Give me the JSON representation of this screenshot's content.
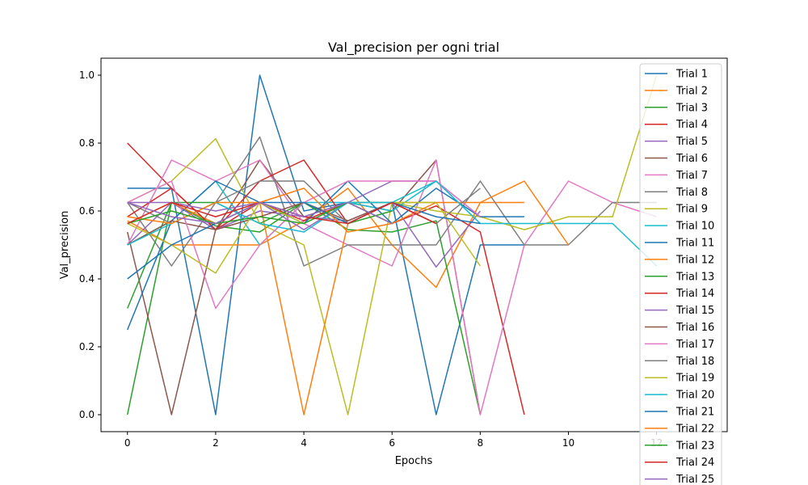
{
  "chart_data": {
    "type": "line",
    "title": "Val_precision per ogni trial",
    "xlabel": "Epochs",
    "ylabel": "Val_precision",
    "xlim": [
      -0.6,
      13.6
    ],
    "ylim": [
      -0.05,
      1.05
    ],
    "xticks": [
      0,
      2,
      4,
      6,
      8,
      10,
      12
    ],
    "yticks": [
      0.0,
      0.2,
      0.4,
      0.6,
      0.8,
      1.0
    ],
    "grid": false,
    "legend_position": "top-right",
    "palette": [
      "#1f77b4",
      "#ff7f0e",
      "#2ca02c",
      "#d62728",
      "#9467bd",
      "#8c564b",
      "#e377c2",
      "#7f7f7f",
      "#bcbd22",
      "#17becf"
    ],
    "series": [
      {
        "name": "Trial 1",
        "values": [
          0.667,
          0.667,
          0.0,
          1.0,
          0.6,
          0.625,
          0.625,
          0.0,
          0.5,
          0.5
        ]
      },
      {
        "name": "Trial 2",
        "values": [
          0.571,
          0.5,
          0.5,
          0.5,
          0.571,
          0.667,
          0.5,
          0.375,
          0.625,
          0.625
        ]
      },
      {
        "name": "Trial 3",
        "values": [
          0.0,
          0.625,
          0.556,
          0.538,
          0.625,
          0.545,
          0.538,
          0.571,
          0.0
        ]
      },
      {
        "name": "Trial 4",
        "values": [
          0.8,
          0.667,
          0.545,
          0.625,
          0.571,
          0.625,
          0.563,
          0.615,
          0.538,
          0.0
        ]
      },
      {
        "name": "Trial 5",
        "values": [
          0.5,
          0.625,
          0.545,
          0.6,
          0.583,
          0.571,
          0.625,
          0.435,
          0.6
        ]
      },
      {
        "name": "Trial 6",
        "values": [
          0.538,
          0.0,
          0.545,
          0.75,
          0.583,
          0.625,
          0.6,
          0.75,
          0.0
        ]
      },
      {
        "name": "Trial 7",
        "values": [
          0.5,
          0.75,
          0.688,
          0.75,
          0.563,
          0.5,
          0.438,
          0.75,
          0.0,
          0.5,
          0.688,
          0.625,
          0.583
        ]
      },
      {
        "name": "Trial 8",
        "values": [
          0.625,
          0.438,
          0.625,
          0.818,
          0.438,
          0.5,
          0.5,
          0.5,
          0.688,
          0.5,
          0.5,
          0.625,
          0.625
        ]
      },
      {
        "name": "Trial 9",
        "values": [
          0.625,
          0.688,
          0.813,
          0.563,
          0.5,
          0.0,
          0.625,
          0.6,
          0.583,
          0.545,
          0.583,
          0.583,
          1.0
        ]
      },
      {
        "name": "Trial 10",
        "values": [
          0.5,
          0.571,
          0.688,
          0.5,
          0.625,
          0.625,
          0.6,
          0.688,
          0.563,
          0.563,
          0.563,
          0.563,
          0.438
        ]
      },
      {
        "name": "Trial 11",
        "values": [
          0.25,
          0.571,
          0.688,
          0.625,
          0.563,
          0.688,
          0.563,
          0.667,
          0.583,
          0.583
        ]
      },
      {
        "name": "Trial 12",
        "values": [
          0.563,
          0.625,
          0.563,
          0.625,
          0.0,
          0.563,
          0.625,
          0.625,
          0.625,
          0.688,
          0.5
        ]
      },
      {
        "name": "Trial 13",
        "values": [
          0.313,
          0.625,
          0.625,
          0.563,
          0.625,
          0.563,
          0.6
        ]
      },
      {
        "name": "Trial 14",
        "values": [
          0.583,
          0.667,
          0.545,
          0.688,
          0.75,
          0.563,
          0.625,
          0.563
        ]
      },
      {
        "name": "Trial 15",
        "values": [
          0.625,
          0.625,
          0.6,
          0.625,
          0.545,
          0.625,
          0.688,
          0.688,
          0.583
        ]
      },
      {
        "name": "Trial 16",
        "values": [
          0.5,
          0.571,
          0.545,
          0.583,
          0.625,
          0.571,
          0.625,
          0.563
        ]
      },
      {
        "name": "Trial 17",
        "values": [
          0.625,
          0.688,
          0.313,
          0.5,
          0.625,
          0.688,
          0.688,
          0.688,
          0.583
        ]
      },
      {
        "name": "Trial 18",
        "values": [
          0.625,
          0.563,
          0.625,
          0.688,
          0.688,
          0.563,
          0.625,
          0.563,
          0.667
        ]
      },
      {
        "name": "Trial 19",
        "values": [
          0.563,
          0.5,
          0.417,
          0.625,
          0.563,
          0.625,
          0.625,
          0.625,
          0.438
        ]
      },
      {
        "name": "Trial 20",
        "values": [
          0.5,
          0.563,
          0.625,
          0.563,
          0.538,
          0.625,
          0.625,
          0.688,
          0.563
        ]
      },
      {
        "name": "Trial 21",
        "values": [
          0.4,
          0.5,
          0.563,
          0.625,
          0.625,
          0.563,
          0.625,
          0.583,
          0.563
        ]
      },
      {
        "name": "Trial 22",
        "values": [
          0.583,
          0.563,
          0.625,
          0.625,
          0.667,
          0.538,
          0.563,
          0.625
        ]
      },
      {
        "name": "Trial 23",
        "values": [
          0.563,
          0.6,
          0.563,
          0.583,
          0.563,
          0.625,
          0.563
        ]
      },
      {
        "name": "Trial 24",
        "values": [
          0.563,
          0.625,
          0.583,
          0.625,
          0.583,
          0.563,
          0.625,
          0.563
        ]
      },
      {
        "name": "Trial 25",
        "values": [
          0.625,
          0.583,
          0.563,
          0.625,
          0.583,
          0.625,
          0.563
        ]
      }
    ]
  }
}
